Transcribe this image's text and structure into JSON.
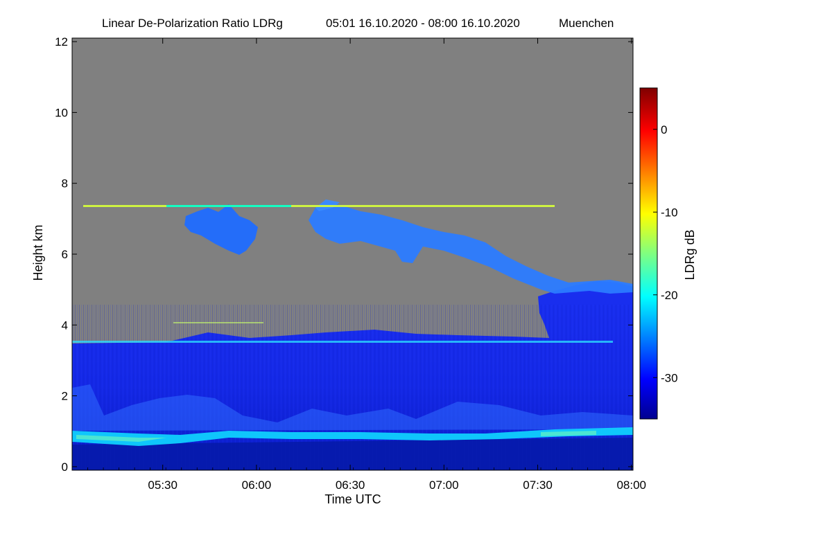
{
  "chart_data": {
    "type": "heatmap",
    "title": "Linear De-Polarization Ratio LDRg",
    "time_range": "05:01 16.10.2020 - 08:00 16.10.2020",
    "location": "Muenchen",
    "xlabel": "Time UTC",
    "ylabel": "Height km",
    "x_ticks": [
      "05:30",
      "06:00",
      "06:30",
      "07:00",
      "07:30",
      "08:00"
    ],
    "x_tick_minutes": [
      29,
      59,
      89,
      119,
      149,
      179
    ],
    "x_range_minutes": [
      0,
      179.5
    ],
    "y_ticks": [
      "0",
      "2",
      "4",
      "6",
      "8",
      "10",
      "12"
    ],
    "y_tick_values": [
      0,
      2,
      4,
      6,
      8,
      10,
      12
    ],
    "ylim": [
      -0.1,
      12.1
    ],
    "colorbar": {
      "label": "LDRg dB",
      "ticks": [
        "0",
        "-10",
        "-20",
        "-30"
      ],
      "tick_values": [
        0,
        -10,
        -20,
        -30
      ],
      "range": [
        -35,
        5
      ]
    },
    "background_color": "#808080",
    "features": [
      {
        "name": "Boundary layer",
        "height_km": [
          0,
          3.6
        ],
        "ldr_db": -32
      },
      {
        "name": "Enhanced layer",
        "height_km": [
          0.7,
          1.1
        ],
        "ldr_db": -22
      },
      {
        "name": "Cirrus cloud 1",
        "time": "05:40-05:55",
        "height_km": [
          6.0,
          7.2
        ],
        "ldr_db": -27
      },
      {
        "name": "Cirrus cloud 2",
        "time": "06:18-07:50",
        "height_km": [
          5.0,
          7.5
        ],
        "ldr_db": -27
      },
      {
        "name": "Interference line",
        "height_km": 7.3,
        "ldr_db": -15
      },
      {
        "name": "Interference line",
        "height_km": 3.55,
        "ldr_db": -22
      }
    ]
  }
}
